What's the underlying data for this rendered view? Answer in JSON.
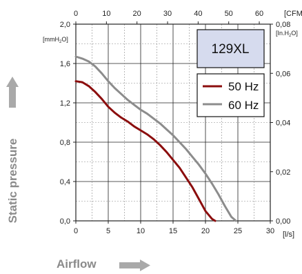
{
  "colors": {
    "series_50hz": "#8b0d0d",
    "series_60hz": "#8c8c8c",
    "model_box_fill": "#d6dbee",
    "grid": "#222222",
    "arrow": "#a9a9a9"
  },
  "labels": {
    "model": "129XL",
    "y_axis_label": "Static pressure",
    "x_axis_label": "Airflow",
    "left_unit": "[mmH2O]",
    "right_unit": "[In.H2O]",
    "top_unit": "[CFM]",
    "bottom_unit": "[l/s]"
  },
  "axes": {
    "left_ticks": [
      "0,0",
      "0,4",
      "0,8",
      "1,2",
      "1,6",
      "2,0"
    ],
    "right_ticks": [
      "0,00",
      "0,02",
      "0,04",
      "0,06",
      "0,08"
    ],
    "bottom_ticks": [
      "0",
      "5",
      "10",
      "15",
      "20",
      "25",
      "30"
    ],
    "top_ticks": [
      "0",
      "10",
      "20",
      "30",
      "40",
      "50",
      "60"
    ]
  },
  "chart_data": {
    "type": "line",
    "xlabel": "Airflow",
    "ylabel": "Static pressure",
    "x_unit": "l/s",
    "y_unit": "mmH2O",
    "secondary_x_unit": "CFM",
    "secondary_y_unit": "In.H2O",
    "xlim": [
      0,
      30
    ],
    "ylim": [
      0,
      2.0
    ],
    "secondary_xlim": [
      0,
      63.6
    ],
    "secondary_ylim": [
      0,
      0.08
    ],
    "grid": true,
    "legend_position": "top-right",
    "series": [
      {
        "name": "50 Hz",
        "color": "#8b0d0d",
        "x": [
          0,
          1,
          2,
          3,
          4,
          5,
          6,
          7,
          8,
          9,
          10,
          11,
          12,
          13,
          14,
          15,
          16,
          17,
          18,
          19,
          20,
          21,
          21.5
        ],
        "y": [
          1.42,
          1.41,
          1.37,
          1.31,
          1.24,
          1.16,
          1.1,
          1.05,
          1.01,
          0.96,
          0.92,
          0.88,
          0.83,
          0.77,
          0.7,
          0.62,
          0.54,
          0.44,
          0.34,
          0.22,
          0.1,
          0.02,
          0.0
        ]
      },
      {
        "name": "60 Hz",
        "color": "#8c8c8c",
        "x": [
          0,
          1,
          2,
          3,
          4,
          5,
          6,
          7,
          8,
          9,
          10,
          11,
          12,
          13,
          14,
          15,
          16,
          17,
          18,
          19,
          20,
          21,
          22,
          23,
          24,
          24.7
        ],
        "y": [
          1.67,
          1.65,
          1.62,
          1.57,
          1.5,
          1.42,
          1.35,
          1.29,
          1.23,
          1.18,
          1.13,
          1.09,
          1.04,
          0.99,
          0.93,
          0.87,
          0.8,
          0.73,
          0.65,
          0.57,
          0.48,
          0.38,
          0.27,
          0.15,
          0.04,
          0.0
        ]
      }
    ]
  }
}
